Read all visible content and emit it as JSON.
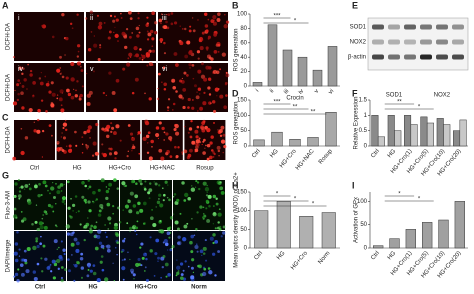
{
  "panels": {
    "a": {
      "panel": "A",
      "row_label": "DCFH-DA",
      "images": [
        "i",
        "ii",
        "iii",
        "iv",
        "v",
        "vi"
      ]
    },
    "c": {
      "panel": "C",
      "row_label": "DCFH-DA",
      "images": [
        "Ctrl",
        "HG",
        "HG+Cro",
        "HG+NAC",
        "Rosup"
      ]
    },
    "e": {
      "panel": "E",
      "rows": [
        "SOD1",
        "NOX2",
        "β-actin"
      ]
    },
    "g": {
      "panel": "G",
      "row_labels": [
        "Fluo-3-AM",
        "DAPI/merge"
      ],
      "images": [
        "Ctrl",
        "HG",
        "HG+Cro",
        "Norm"
      ]
    }
  },
  "chart_data": [
    {
      "type": "bar",
      "panel": "B",
      "ylabel": "ROS generation",
      "xlabel": "Crocin",
      "categories": [
        "i",
        "ii",
        "iii",
        "iv",
        "v",
        "vi"
      ],
      "values": [
        5,
        85,
        50,
        40,
        22,
        55
      ],
      "color": "#9a9a9a",
      "ylim": [
        0,
        100
      ],
      "yticks": [
        0,
        20,
        40,
        60,
        80,
        100
      ],
      "annotations": [
        "***",
        "*"
      ]
    },
    {
      "type": "bar",
      "panel": "D",
      "ylabel": "ROS generation",
      "categories": [
        "Ctrl",
        "HG",
        "HG+Cro",
        "HG+NAC",
        "Rosup"
      ],
      "values": [
        20,
        45,
        22,
        28,
        110
      ],
      "color": "#a8a8a8",
      "ylim": [
        0,
        150
      ],
      "yticks": [
        0,
        50,
        100,
        150
      ],
      "annotations": [
        "***",
        "**",
        "**"
      ]
    },
    {
      "type": "bar",
      "panel": "F",
      "ylabel": "Relative Expression",
      "categories": [
        "Ctrl",
        "HG",
        "HG+Cro(1)",
        "HG+Cro(5)",
        "HG+Cro(10)",
        "HG+Cro(20)"
      ],
      "series": [
        {
          "name": "SOD1",
          "color": "#8a8a8a",
          "values": [
            1.0,
            1.0,
            1.0,
            0.95,
            0.9,
            0.5
          ]
        },
        {
          "name": "NOX2",
          "color": "#c8c8c8",
          "values": [
            0.3,
            0.5,
            0.7,
            0.75,
            0.7,
            0.85
          ]
        }
      ],
      "ylim": [
        0,
        1.5
      ],
      "yticks": [
        0,
        0.5,
        1,
        1.5
      ],
      "annotations": [
        "**",
        "*"
      ]
    },
    {
      "type": "bar",
      "panel": "H",
      "ylabel": "Mean optics density (MOD) of Ca2+",
      "categories": [
        "Ctrl",
        "HG",
        "HG+Cro",
        "Norm"
      ],
      "values": [
        100,
        125,
        85,
        95
      ],
      "color": "#b0b0b0",
      "ylim": [
        0,
        150
      ],
      "yticks": [
        0,
        50,
        100,
        150
      ],
      "annotations": [
        "*",
        "*",
        "*"
      ]
    },
    {
      "type": "bar",
      "panel": "I",
      "ylabel": "Activation of GPx",
      "categories": [
        "Ctrl",
        "HG",
        "HG+Cro(1)",
        "HG+Cro(5)",
        "HG+Cro(10)",
        "HG+Cro(20)"
      ],
      "values": [
        5,
        20,
        40,
        55,
        60,
        100
      ],
      "color": "#a0a0a0",
      "ylim": [
        0,
        120
      ],
      "yticks": [
        0,
        50,
        100
      ],
      "annotations": [
        "*",
        "*"
      ]
    }
  ]
}
